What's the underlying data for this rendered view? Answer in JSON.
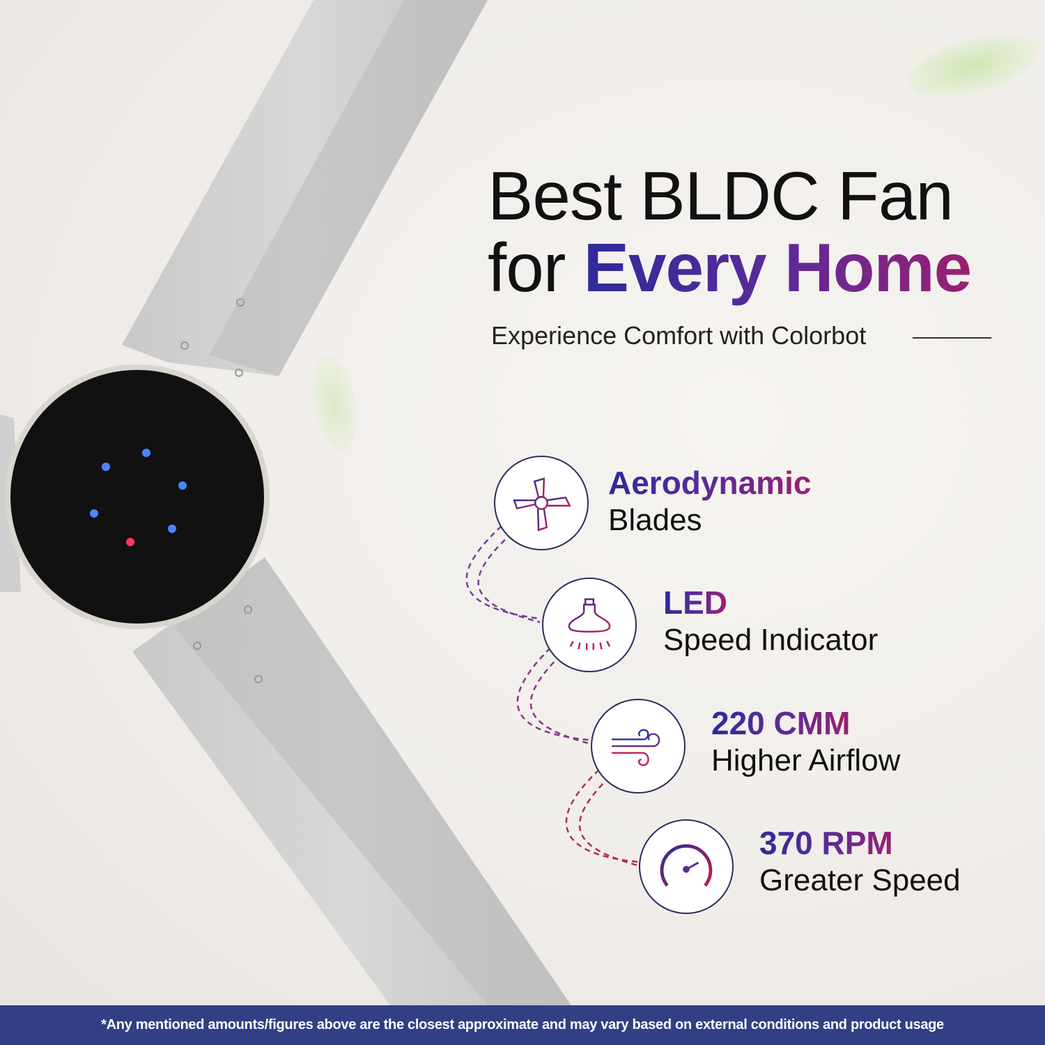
{
  "headline": {
    "line1": "Best BLDC Fan",
    "line2_plain": "for",
    "line2_highlight": "Every Home"
  },
  "subtitle": "Experience Comfort with Colorbot",
  "features": [
    {
      "title": "Aerodynamic",
      "subtitle": "Blades",
      "icon": "fan-blades-icon"
    },
    {
      "title": "LED",
      "subtitle": "Speed Indicator",
      "icon": "led-bulb-icon"
    },
    {
      "title": "220 CMM",
      "subtitle": "Higher Airflow",
      "icon": "wind-icon"
    },
    {
      "title": "370 RPM",
      "subtitle": "Greater Speed",
      "icon": "speedometer-icon"
    }
  ],
  "footer": {
    "disclaimer": "*Any mentioned amounts/figures above are the closest approximate and may vary based on external conditions and product usage"
  },
  "colors": {
    "accent_start": "#2e2a9a",
    "accent_end": "#9a2070",
    "footer_bg": "#313f84",
    "led_blue": "#3a7bff",
    "led_red": "#ff3050"
  }
}
